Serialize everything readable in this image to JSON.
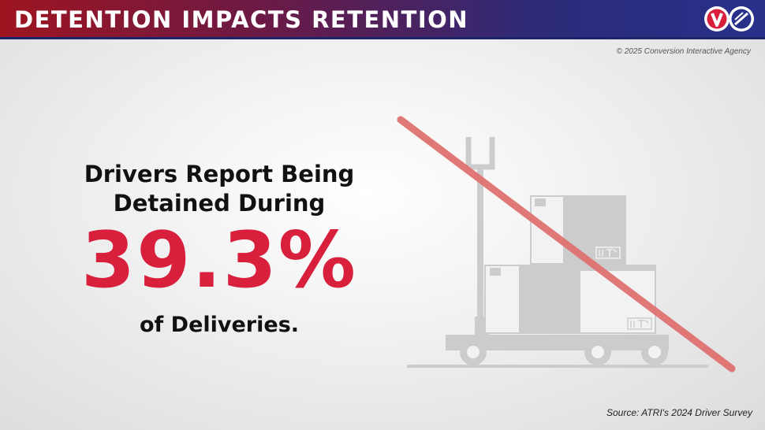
{
  "header": {
    "title": "DETENTION IMPACTS RETENTION",
    "logo_icons": [
      "conversion-interactive-logo-icon",
      "driver-logo-icon"
    ]
  },
  "copyright": "© 2025 Conversion Interactive Agency",
  "main": {
    "headline_line1": "Drivers Report Being",
    "headline_line2": "Detained During",
    "stat_value": "39.3%",
    "stat_tail": "of Deliveries."
  },
  "illustration": {
    "icon": "pallet-jack-with-boxes-icon",
    "overlay": "crossed-out-slash-icon"
  },
  "source": "Source: ATRI's 2024 Driver Survey",
  "colors": {
    "accent_red": "#d81f3c",
    "header_left": "#9e1520",
    "header_right": "#27318a",
    "slash": "#e07272",
    "illustration_gray": "#cccccc"
  }
}
